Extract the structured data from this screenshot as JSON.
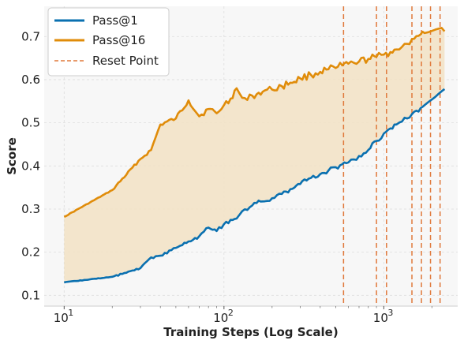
{
  "chart_data": {
    "type": "line",
    "title": "",
    "xlabel": "Training Steps (Log Scale)",
    "ylabel": "Score",
    "x_scale": "log",
    "xlim": [
      7.5,
      2900
    ],
    "ylim": [
      0.075,
      0.77
    ],
    "grid": true,
    "legend_position": "top-left",
    "x_ticks": [
      {
        "value": 10,
        "base": "10",
        "exp": "1"
      },
      {
        "value": 100,
        "base": "10",
        "exp": "2"
      },
      {
        "value": 1000,
        "base": "10",
        "exp": "3"
      }
    ],
    "y_ticks": [
      {
        "value": 0.1,
        "label": "0.1"
      },
      {
        "value": 0.2,
        "label": "0.2"
      },
      {
        "value": 0.3,
        "label": "0.3"
      },
      {
        "value": 0.4,
        "label": "0.4"
      },
      {
        "value": 0.5,
        "label": "0.5"
      },
      {
        "value": 0.6,
        "label": "0.6"
      },
      {
        "value": 0.7,
        "label": "0.7"
      }
    ],
    "fill_between": {
      "color": "#f2e2c4",
      "lower": "Pass@1",
      "upper": "Pass@16"
    },
    "series": [
      {
        "name": "Pass@1",
        "color": "#0a70b0",
        "x": [
          10,
          20,
          30,
          35,
          40,
          50,
          60,
          70,
          75,
          80,
          90,
          100,
          110,
          120,
          130,
          140,
          150,
          160,
          180,
          200,
          230,
          260,
          300,
          350,
          400,
          450,
          500,
          550,
          600,
          650,
          700,
          800,
          900,
          1000,
          1100,
          1200,
          1300,
          1400,
          1500,
          1600,
          1700,
          1800,
          1900,
          2000,
          2100,
          2200,
          2300,
          2400
        ],
        "values": [
          0.13,
          0.143,
          0.163,
          0.188,
          0.192,
          0.21,
          0.225,
          0.237,
          0.248,
          0.257,
          0.249,
          0.265,
          0.275,
          0.278,
          0.295,
          0.298,
          0.308,
          0.314,
          0.318,
          0.325,
          0.335,
          0.346,
          0.358,
          0.372,
          0.381,
          0.389,
          0.397,
          0.404,
          0.408,
          0.415,
          0.423,
          0.437,
          0.458,
          0.475,
          0.487,
          0.496,
          0.503,
          0.51,
          0.52,
          0.528,
          0.534,
          0.541,
          0.548,
          0.554,
          0.56,
          0.567,
          0.573,
          0.578
        ]
      },
      {
        "name": "Pass@16",
        "color": "#e08c0a",
        "x": [
          10,
          20,
          30,
          35,
          40,
          50,
          60,
          70,
          80,
          90,
          100,
          110,
          120,
          130,
          140,
          150,
          160,
          180,
          200,
          230,
          260,
          300,
          350,
          400,
          450,
          500,
          550,
          600,
          650,
          700,
          800,
          900,
          1000,
          1100,
          1200,
          1300,
          1400,
          1500,
          1600,
          1700,
          1800,
          1900,
          2000,
          2100,
          2200,
          2300,
          2400
        ],
        "values": [
          0.282,
          0.344,
          0.416,
          0.437,
          0.496,
          0.51,
          0.552,
          0.515,
          0.532,
          0.522,
          0.541,
          0.556,
          0.58,
          0.558,
          0.553,
          0.563,
          0.566,
          0.575,
          0.577,
          0.585,
          0.593,
          0.603,
          0.611,
          0.618,
          0.624,
          0.627,
          0.633,
          0.637,
          0.639,
          0.642,
          0.648,
          0.653,
          0.658,
          0.664,
          0.67,
          0.676,
          0.683,
          0.694,
          0.701,
          0.705,
          0.708,
          0.71,
          0.713,
          0.716,
          0.718,
          0.72,
          0.712
        ]
      },
      {
        "name": "Reset Point",
        "color": "#e0783a",
        "style": "dashed",
        "x": [
          560,
          900,
          1040,
          1500,
          1720,
          1960,
          2250
        ]
      }
    ]
  }
}
